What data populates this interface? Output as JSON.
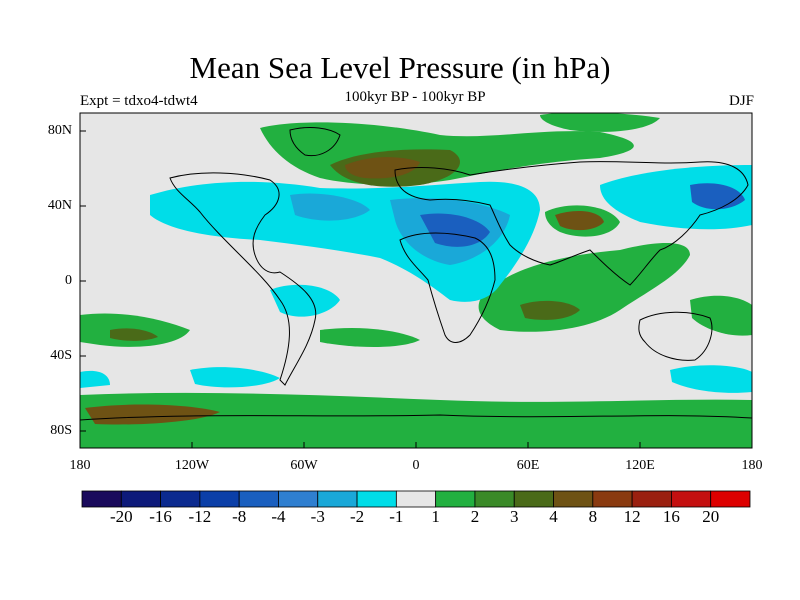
{
  "title": "Mean Sea Level Pressure (in hPa)",
  "subtitle": "100kyr BP - 100kyr BP",
  "experiment": "Expt = tdxo4-tdwt4",
  "season": "DJF",
  "map": {
    "lat_ticks": [
      "80N",
      "40N",
      "0",
      "40S",
      "80S"
    ],
    "lon_ticks": [
      "180",
      "120W",
      "60W",
      "0",
      "60E",
      "120E",
      "180"
    ]
  },
  "colorbar": {
    "labels": [
      "-20",
      "-16",
      "-12",
      "-8",
      "-4",
      "-3",
      "-2",
      "-1",
      "1",
      "2",
      "3",
      "4",
      "8",
      "12",
      "16",
      "20"
    ],
    "colors": [
      "#1a0a5c",
      "#0d1a7a",
      "#0b2a8f",
      "#0b3fa8",
      "#1a5fbf",
      "#2f7fd0",
      "#1aa8d8",
      "#00dde8",
      "#e6e6e6",
      "#22b040",
      "#3a8a28",
      "#4a6a18",
      "#6e5214",
      "#8a3a10",
      "#9a2010",
      "#c41010",
      "#dd0000"
    ]
  }
}
